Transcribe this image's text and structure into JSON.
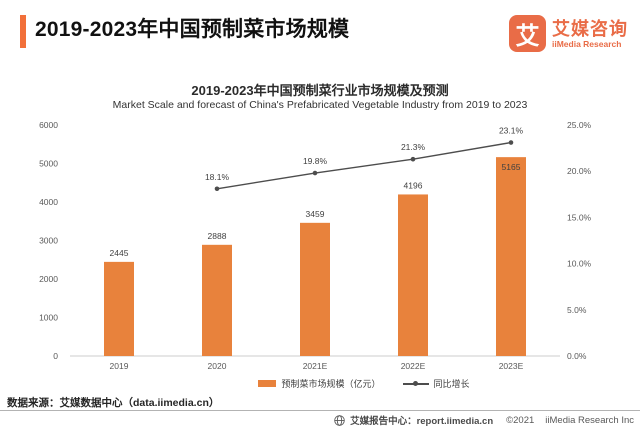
{
  "header": {
    "title": "2019-2023年中国预制菜市场规模"
  },
  "logo": {
    "glyph": "艾",
    "name_cn": "艾媒咨询",
    "name_en": "iiMedia Research"
  },
  "chart_data": {
    "type": "bar",
    "title": "2019-2023年中国预制菜行业市场规模及预测",
    "subtitle": "Market Scale and forecast of China's Prefabricated Vegetable Industry from 2019 to 2023",
    "categories": [
      "2019",
      "2020",
      "2021E",
      "2022E",
      "2023E"
    ],
    "series": [
      {
        "name": "预制菜市场规模（亿元）",
        "type": "bar",
        "axis": "left",
        "values": [
          2445,
          2888,
          3459,
          4196,
          5165
        ]
      },
      {
        "name": "同比增长",
        "type": "line",
        "axis": "right",
        "unit": "%",
        "values": [
          null,
          18.1,
          19.8,
          21.3,
          23.1
        ]
      }
    ],
    "left_axis": {
      "min": 0,
      "max": 6000,
      "step": 1000,
      "ticks": [
        "0",
        "1000",
        "2000",
        "3000",
        "4000",
        "5000",
        "6000"
      ]
    },
    "right_axis": {
      "min": 0,
      "max": 25,
      "step": 5,
      "ticks": [
        "0.0%",
        "5.0%",
        "10.0%",
        "15.0%",
        "20.0%",
        "25.0%"
      ]
    },
    "colors": {
      "bar": "#E8823C",
      "line": "#4D4D4D",
      "tick_text": "#595959",
      "value_text": "#404040",
      "axis_line": "#cccccc"
    },
    "legend_position": "bottom",
    "grid": false
  },
  "footer": {
    "source": "数据来源：艾媒数据中心（data.iimedia.cn）",
    "report_center": "艾媒报告中心：report.iimedia.cn",
    "copyright_year": "©2021",
    "company": "iiMedia Research Inc"
  }
}
